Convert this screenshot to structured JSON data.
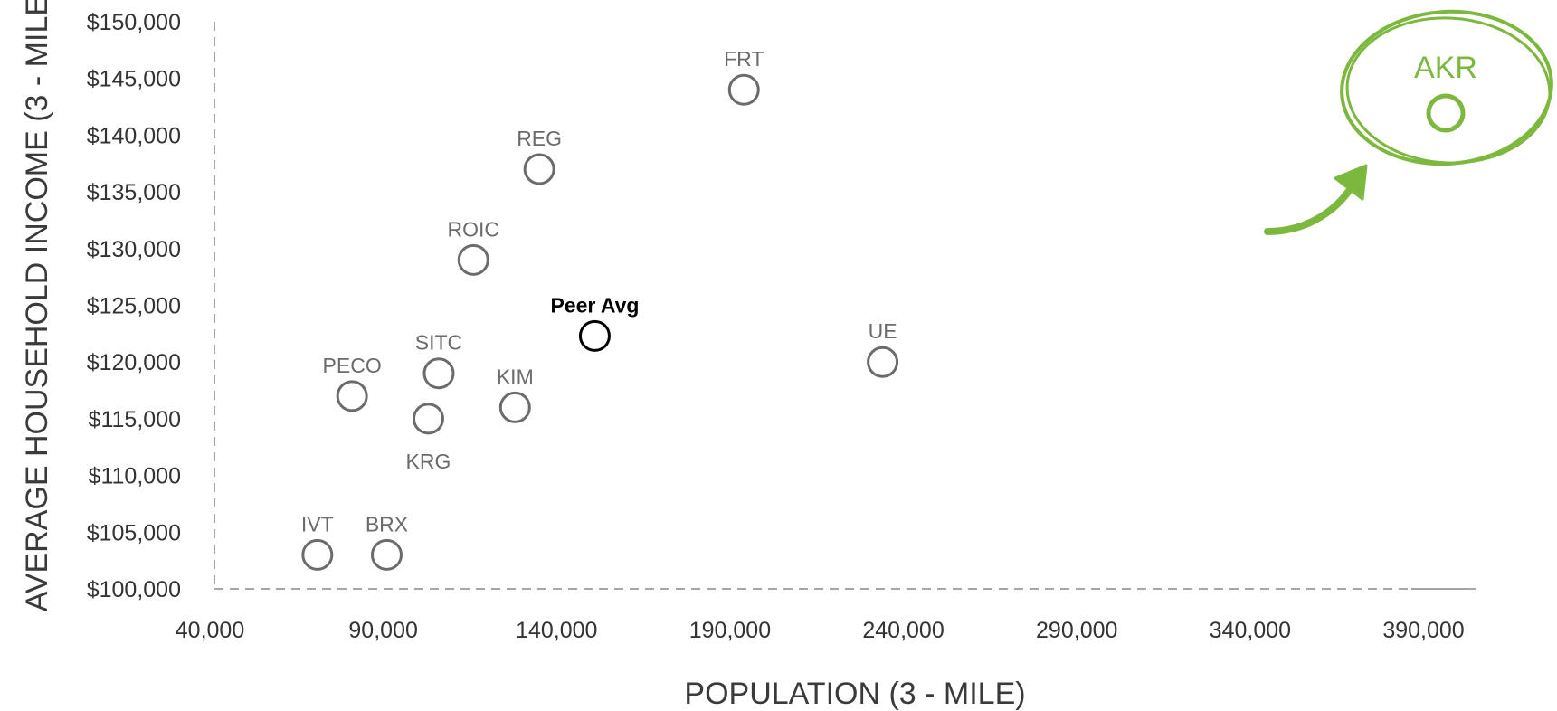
{
  "chart_data": {
    "type": "scatter",
    "xlabel": "POPULATION (3 - MILE)",
    "ylabel": "AVERAGE HOUSEHOLD INCOME (3 - MILE)",
    "xlim": [
      40000,
      405000
    ],
    "ylim": [
      100000,
      150000
    ],
    "x_ticks": [
      "40,000",
      "90,000",
      "140,000",
      "190,000",
      "240,000",
      "290,000",
      "340,000",
      "390,000"
    ],
    "x_tick_values": [
      40000,
      90000,
      140000,
      190000,
      240000,
      290000,
      340000,
      390000
    ],
    "y_ticks": [
      "$100,000",
      "$105,000",
      "$110,000",
      "$115,000",
      "$120,000",
      "$125,000",
      "$130,000",
      "$135,000",
      "$140,000",
      "$145,000",
      "$150,000"
    ],
    "y_tick_values": [
      100000,
      105000,
      110000,
      115000,
      120000,
      125000,
      130000,
      135000,
      140000,
      145000,
      150000
    ],
    "grid": false,
    "points": [
      {
        "label": "FRT",
        "x": 194000,
        "y": 144000,
        "label_pos": "above"
      },
      {
        "label": "REG",
        "x": 135000,
        "y": 137000,
        "label_pos": "above"
      },
      {
        "label": "ROIC",
        "x": 116000,
        "y": 129000,
        "label_pos": "above"
      },
      {
        "label": "Peer Avg",
        "x": 151000,
        "y": 122300,
        "label_pos": "above",
        "highlight": "peer"
      },
      {
        "label": "UE",
        "x": 234000,
        "y": 120000,
        "label_pos": "above"
      },
      {
        "label": "SITC",
        "x": 106000,
        "y": 119000,
        "label_pos": "above"
      },
      {
        "label": "PECO",
        "x": 81000,
        "y": 117000,
        "label_pos": "above"
      },
      {
        "label": "KIM",
        "x": 128000,
        "y": 116000,
        "label_pos": "above"
      },
      {
        "label": "KRG",
        "x": 103000,
        "y": 115000,
        "label_pos": "below"
      },
      {
        "label": "IVT",
        "x": 71000,
        "y": 103000,
        "label_pos": "above"
      },
      {
        "label": "BRX",
        "x": 91000,
        "y": 103000,
        "label_pos": "above"
      }
    ],
    "callout": {
      "label": "AKR"
    },
    "colors": {
      "default": "#6b6b6b",
      "peer": "#000000",
      "highlight": "#7cb83e",
      "axis": "#a6a6a6"
    }
  }
}
